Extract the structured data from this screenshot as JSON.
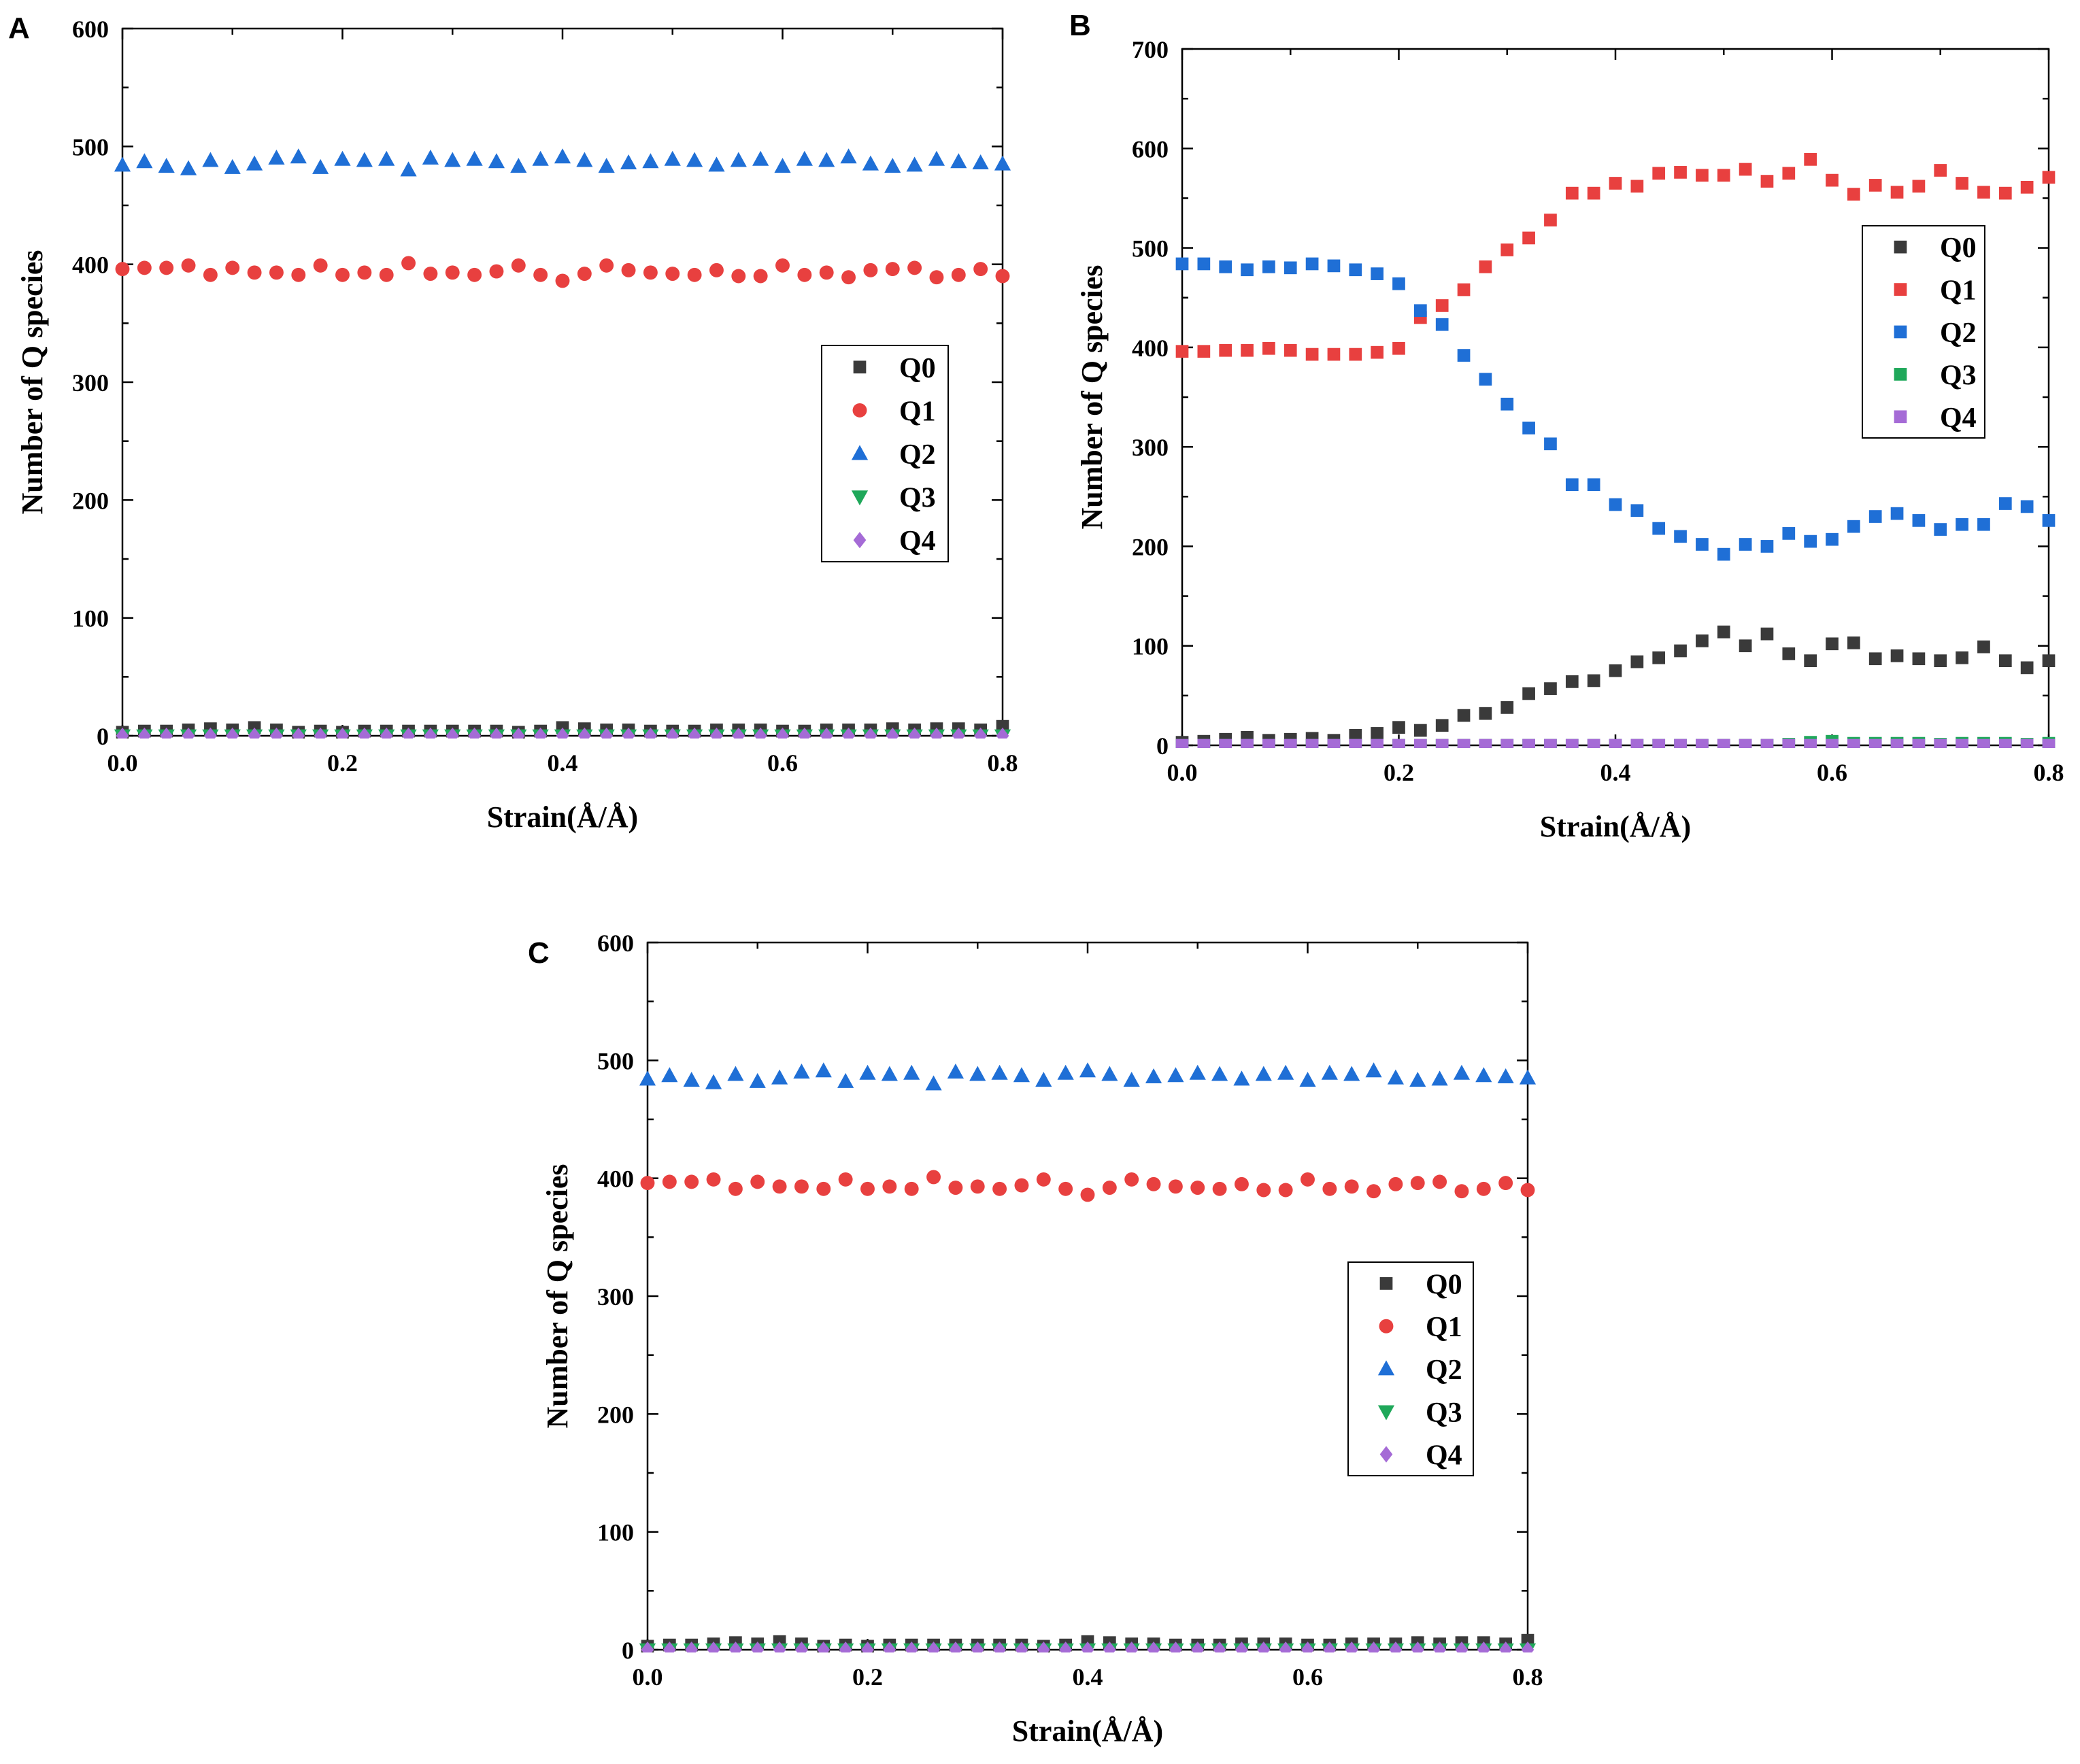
{
  "figure": {
    "panels": [
      "A",
      "B",
      "C"
    ]
  },
  "chart_data": [
    {
      "panel": "A",
      "type": "scatter",
      "xlabel": "Strain(Å/Å)",
      "ylabel": "Number of Q species",
      "xlim": [
        0.0,
        0.8
      ],
      "ylim": [
        0,
        600
      ],
      "xticks": [
        "0.0",
        "0.2",
        "0.4",
        "0.6",
        "0.8"
      ],
      "yticks": [
        "0",
        "100",
        "200",
        "300",
        "400",
        "500",
        "600"
      ],
      "legend_position": "center-right",
      "x": [
        0.0,
        0.02,
        0.04,
        0.06,
        0.08,
        0.1,
        0.12,
        0.14,
        0.16,
        0.18,
        0.2,
        0.22,
        0.24,
        0.26,
        0.28,
        0.3,
        0.32,
        0.34,
        0.36,
        0.38,
        0.4,
        0.42,
        0.44,
        0.46,
        0.48,
        0.5,
        0.52,
        0.54,
        0.56,
        0.58,
        0.6,
        0.62,
        0.64,
        0.66,
        0.68,
        0.7,
        0.72,
        0.74,
        0.76,
        0.78,
        0.8
      ],
      "series": [
        {
          "name": "Q0",
          "marker": "square",
          "color": "#3a3a3a",
          "values": [
            3,
            4,
            4,
            5,
            6,
            5,
            7,
            5,
            3,
            4,
            3,
            4,
            4,
            4,
            4,
            4,
            4,
            4,
            3,
            4,
            7,
            6,
            5,
            5,
            4,
            4,
            4,
            5,
            5,
            5,
            4,
            4,
            5,
            5,
            5,
            6,
            5,
            6,
            6,
            5,
            8
          ]
        },
        {
          "name": "Q1",
          "marker": "circle",
          "color": "#e8403f",
          "values": [
            396,
            397,
            397,
            399,
            391,
            397,
            393,
            393,
            391,
            399,
            391,
            393,
            391,
            401,
            392,
            393,
            391,
            394,
            399,
            391,
            386,
            392,
            399,
            395,
            393,
            392,
            391,
            395,
            390,
            390,
            399,
            391,
            393,
            389,
            395,
            396,
            397,
            389,
            391,
            396,
            390
          ]
        },
        {
          "name": "Q2",
          "marker": "triangle-up",
          "color": "#1f6fd6",
          "values": [
            484,
            487,
            483,
            481,
            488,
            482,
            485,
            490,
            491,
            482,
            489,
            488,
            489,
            480,
            490,
            488,
            489,
            487,
            483,
            489,
            491,
            488,
            483,
            486,
            487,
            489,
            488,
            484,
            488,
            489,
            483,
            489,
            488,
            491,
            485,
            483,
            484,
            489,
            487,
            486,
            485
          ]
        },
        {
          "name": "Q3",
          "marker": "triangle-down",
          "color": "#1fa85a",
          "values": [
            0,
            0,
            0,
            0,
            0,
            0,
            0,
            0,
            0,
            0,
            0,
            0,
            0,
            0,
            0,
            0,
            0,
            0,
            0,
            0,
            0,
            0,
            0,
            0,
            0,
            0,
            0,
            0,
            0,
            0,
            0,
            0,
            0,
            0,
            0,
            0,
            0,
            0,
            0,
            0,
            0
          ]
        },
        {
          "name": "Q4",
          "marker": "diamond",
          "color": "#a56bd6",
          "values": [
            0,
            0,
            0,
            0,
            0,
            0,
            0,
            0,
            0,
            0,
            0,
            0,
            0,
            0,
            0,
            0,
            0,
            0,
            0,
            0,
            0,
            0,
            0,
            0,
            0,
            0,
            0,
            0,
            0,
            0,
            0,
            0,
            0,
            0,
            0,
            0,
            0,
            0,
            0,
            0,
            0
          ]
        }
      ]
    },
    {
      "panel": "B",
      "type": "scatter",
      "xlabel": "Strain(Å/Å)",
      "ylabel": "Number of Q species",
      "xlim": [
        0.0,
        0.8
      ],
      "ylim": [
        0,
        700
      ],
      "xticks": [
        "0.0",
        "0.2",
        "0.4",
        "0.6",
        "0.8"
      ],
      "yticks": [
        "0",
        "100",
        "200",
        "300",
        "400",
        "500",
        "600",
        "700"
      ],
      "legend_position": "top-right",
      "x": [
        0.0,
        0.02,
        0.04,
        0.06,
        0.08,
        0.1,
        0.12,
        0.14,
        0.16,
        0.18,
        0.2,
        0.22,
        0.24,
        0.26,
        0.28,
        0.3,
        0.32,
        0.34,
        0.36,
        0.38,
        0.4,
        0.42,
        0.44,
        0.46,
        0.48,
        0.5,
        0.52,
        0.54,
        0.56,
        0.58,
        0.6,
        0.62,
        0.64,
        0.66,
        0.68,
        0.7,
        0.72,
        0.74,
        0.76,
        0.78,
        0.8
      ],
      "series": [
        {
          "name": "Q0",
          "marker": "square",
          "color": "#3a3a3a",
          "values": [
            3,
            4,
            6,
            8,
            5,
            6,
            7,
            5,
            10,
            12,
            18,
            15,
            20,
            30,
            32,
            38,
            52,
            57,
            64,
            65,
            75,
            84,
            88,
            95,
            105,
            114,
            100,
            112,
            92,
            85,
            102,
            103,
            87,
            90,
            87,
            85,
            88,
            99,
            85,
            78,
            85
          ]
        },
        {
          "name": "Q1",
          "marker": "square",
          "color": "#e8403f",
          "values": [
            396,
            396,
            397,
            397,
            399,
            397,
            393,
            393,
            393,
            395,
            399,
            430,
            442,
            458,
            481,
            498,
            510,
            528,
            555,
            555,
            565,
            562,
            575,
            576,
            573,
            573,
            579,
            567,
            575,
            589,
            568,
            554,
            563,
            556,
            562,
            578,
            565,
            556,
            555,
            561,
            571
          ]
        },
        {
          "name": "Q2",
          "marker": "square",
          "color": "#1f6fd6",
          "values": [
            484,
            484,
            481,
            478,
            481,
            480,
            484,
            482,
            478,
            474,
            464,
            437,
            423,
            392,
            368,
            343,
            319,
            303,
            262,
            262,
            242,
            236,
            218,
            210,
            202,
            192,
            202,
            200,
            213,
            205,
            207,
            220,
            230,
            233,
            226,
            217,
            222,
            222,
            243,
            240,
            226
          ]
        },
        {
          "name": "Q3",
          "marker": "square",
          "color": "#1fa85a",
          "values": [
            0,
            0,
            0,
            0,
            0,
            0,
            0,
            0,
            0,
            0,
            0,
            0,
            0,
            0,
            0,
            0,
            0,
            0,
            0,
            0,
            0,
            0,
            0,
            0,
            0,
            0,
            0,
            0,
            1,
            3,
            4,
            2,
            2,
            2,
            2,
            1,
            2,
            2,
            2,
            1,
            2
          ]
        },
        {
          "name": "Q4",
          "marker": "square",
          "color": "#a56bd6",
          "values": [
            0,
            0,
            0,
            0,
            0,
            0,
            0,
            0,
            0,
            0,
            0,
            0,
            0,
            0,
            0,
            0,
            0,
            0,
            0,
            0,
            0,
            0,
            0,
            0,
            0,
            0,
            0,
            0,
            0,
            0,
            0,
            0,
            0,
            0,
            0,
            0,
            0,
            0,
            0,
            0,
            0
          ]
        }
      ]
    },
    {
      "panel": "C",
      "type": "scatter",
      "xlabel": "Strain(Å/Å)",
      "ylabel": "Number of Q species",
      "xlim": [
        0.0,
        0.8
      ],
      "ylim": [
        0,
        600
      ],
      "xticks": [
        "0.0",
        "0.2",
        "0.4",
        "0.6",
        "0.8"
      ],
      "yticks": [
        "0",
        "100",
        "200",
        "300",
        "400",
        "500",
        "600"
      ],
      "legend_position": "center-right",
      "x": [
        0.0,
        0.02,
        0.04,
        0.06,
        0.08,
        0.1,
        0.12,
        0.14,
        0.16,
        0.18,
        0.2,
        0.22,
        0.24,
        0.26,
        0.28,
        0.3,
        0.32,
        0.34,
        0.36,
        0.38,
        0.4,
        0.42,
        0.44,
        0.46,
        0.48,
        0.5,
        0.52,
        0.54,
        0.56,
        0.58,
        0.6,
        0.62,
        0.64,
        0.66,
        0.68,
        0.7,
        0.72,
        0.74,
        0.76,
        0.78,
        0.8
      ],
      "series": [
        {
          "name": "Q0",
          "marker": "square",
          "color": "#3a3a3a",
          "values": [
            3,
            4,
            4,
            5,
            6,
            5,
            7,
            5,
            3,
            4,
            3,
            4,
            4,
            4,
            4,
            4,
            4,
            4,
            3,
            4,
            7,
            6,
            5,
            5,
            4,
            4,
            4,
            5,
            5,
            5,
            4,
            4,
            5,
            5,
            5,
            6,
            5,
            6,
            6,
            5,
            8
          ]
        },
        {
          "name": "Q1",
          "marker": "circle",
          "color": "#e8403f",
          "values": [
            396,
            397,
            397,
            399,
            391,
            397,
            393,
            393,
            391,
            399,
            391,
            393,
            391,
            401,
            392,
            393,
            391,
            394,
            399,
            391,
            386,
            392,
            399,
            395,
            393,
            392,
            391,
            395,
            390,
            390,
            399,
            391,
            393,
            389,
            395,
            396,
            397,
            389,
            391,
            396,
            390
          ]
        },
        {
          "name": "Q2",
          "marker": "triangle-up",
          "color": "#1f6fd6",
          "values": [
            484,
            487,
            483,
            481,
            488,
            482,
            485,
            490,
            491,
            482,
            489,
            488,
            489,
            480,
            490,
            488,
            489,
            487,
            483,
            489,
            491,
            488,
            483,
            486,
            487,
            489,
            488,
            484,
            488,
            489,
            483,
            489,
            488,
            491,
            485,
            483,
            484,
            489,
            487,
            486,
            485
          ]
        },
        {
          "name": "Q3",
          "marker": "triangle-down",
          "color": "#1fa85a",
          "values": [
            0,
            0,
            0,
            0,
            0,
            0,
            0,
            0,
            0,
            0,
            0,
            0,
            0,
            0,
            0,
            0,
            0,
            0,
            0,
            0,
            0,
            0,
            0,
            0,
            0,
            0,
            0,
            0,
            0,
            0,
            0,
            0,
            0,
            0,
            0,
            0,
            0,
            0,
            0,
            0,
            0
          ]
        },
        {
          "name": "Q4",
          "marker": "diamond",
          "color": "#a56bd6",
          "values": [
            0,
            0,
            0,
            0,
            0,
            0,
            0,
            0,
            0,
            0,
            0,
            0,
            0,
            0,
            0,
            0,
            0,
            0,
            0,
            0,
            0,
            0,
            0,
            0,
            0,
            0,
            0,
            0,
            0,
            0,
            0,
            0,
            0,
            0,
            0,
            0,
            0,
            0,
            0,
            0,
            0
          ]
        }
      ]
    }
  ]
}
